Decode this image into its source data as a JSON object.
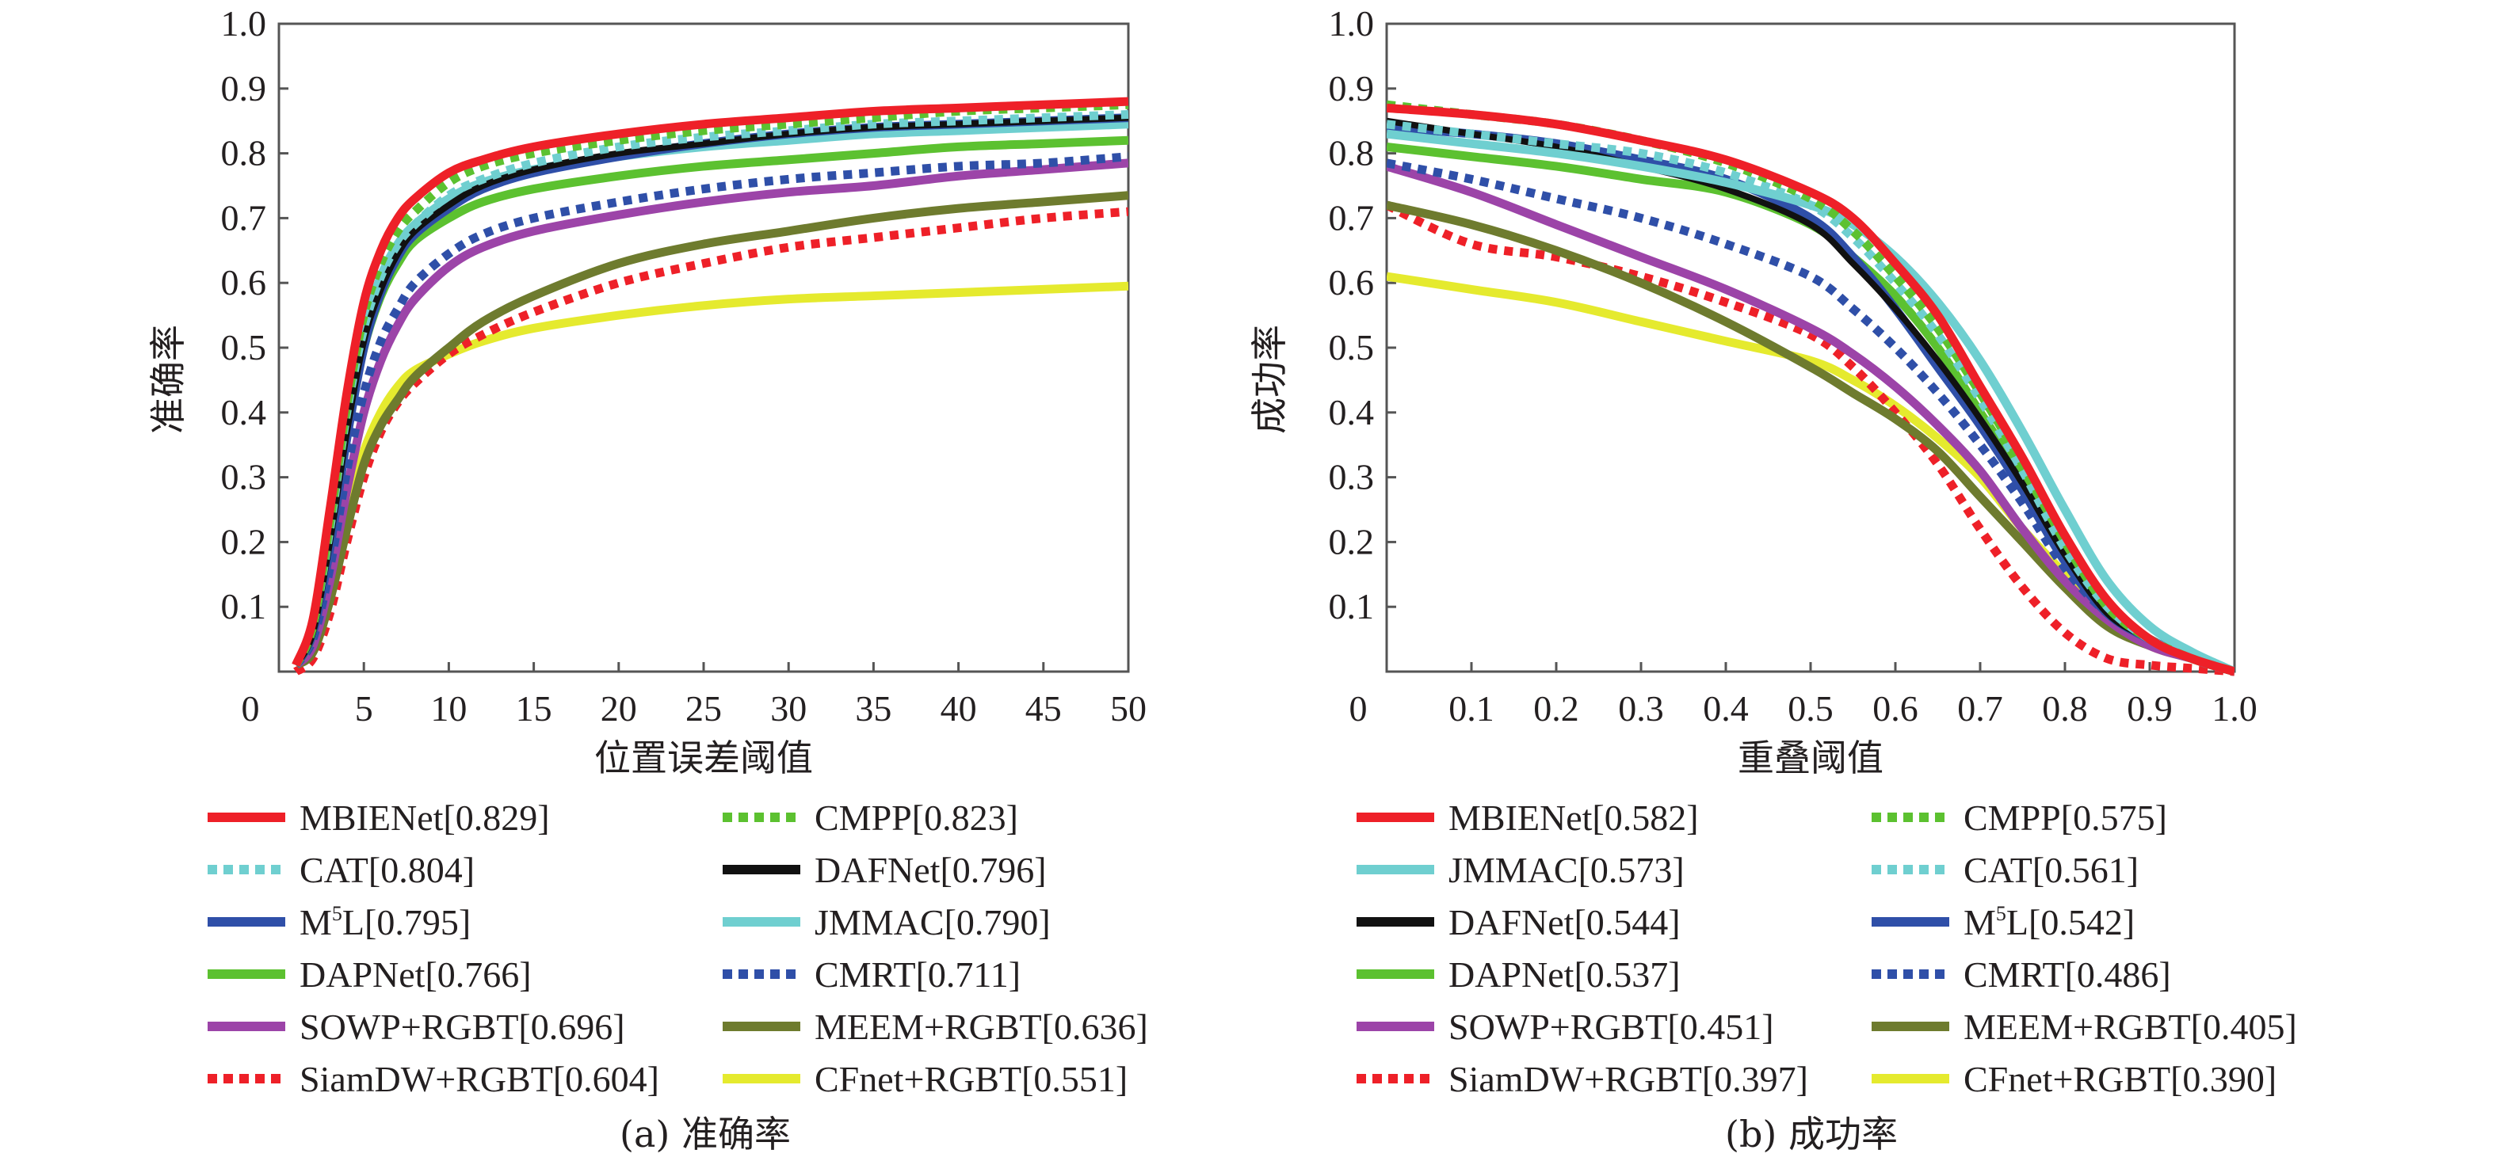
{
  "chart_data": [
    {
      "id": "precision",
      "type": "line",
      "title": "",
      "caption": "(a) 准确率",
      "xlabel": "位置误差阈值",
      "ylabel": "准确率",
      "xlim": [
        0,
        50
      ],
      "ylim": [
        0,
        1.0
      ],
      "xticks": [
        0,
        5,
        10,
        15,
        20,
        25,
        30,
        35,
        40,
        45,
        50
      ],
      "xtick_labels": [
        "0",
        "5",
        "10",
        "15",
        "20",
        "25",
        "30",
        "35",
        "40",
        "45",
        "50"
      ],
      "yticks": [
        0.1,
        0.2,
        0.3,
        0.4,
        0.5,
        0.6,
        0.7,
        0.8,
        0.9,
        1.0
      ],
      "ytick_labels": [
        "0.1",
        "0.2",
        "0.3",
        "0.4",
        "0.5",
        "0.6",
        "0.7",
        "0.8",
        "0.9",
        "1.0"
      ],
      "grid": false,
      "legend_position": "below",
      "x": [
        1,
        2,
        3,
        4,
        5,
        6,
        7,
        8,
        10,
        12,
        15,
        20,
        25,
        30,
        35,
        40,
        45,
        50
      ],
      "series": [
        {
          "name": "MBIENet",
          "score": "0.829",
          "color": "#ee2028",
          "style": "solid",
          "values": [
            0.01,
            0.08,
            0.25,
            0.43,
            0.57,
            0.65,
            0.7,
            0.73,
            0.77,
            0.79,
            0.81,
            0.83,
            0.845,
            0.855,
            0.865,
            0.87,
            0.875,
            0.88
          ]
        },
        {
          "name": "CMPP",
          "score": "0.823",
          "color": "#5cc130",
          "style": "dotted",
          "values": [
            0.01,
            0.07,
            0.23,
            0.41,
            0.55,
            0.63,
            0.68,
            0.71,
            0.755,
            0.78,
            0.8,
            0.82,
            0.835,
            0.845,
            0.855,
            0.865,
            0.87,
            0.875
          ]
        },
        {
          "name": "CAT",
          "score": "0.804",
          "color": "#6fcfd0",
          "style": "dotted",
          "values": [
            0.01,
            0.07,
            0.22,
            0.4,
            0.53,
            0.61,
            0.66,
            0.69,
            0.735,
            0.76,
            0.785,
            0.81,
            0.825,
            0.835,
            0.845,
            0.85,
            0.855,
            0.86
          ]
        },
        {
          "name": "DAFNet",
          "score": "0.796",
          "color": "#111111",
          "style": "solid",
          "values": [
            0.01,
            0.06,
            0.2,
            0.37,
            0.51,
            0.59,
            0.645,
            0.68,
            0.72,
            0.75,
            0.775,
            0.8,
            0.815,
            0.83,
            0.84,
            0.845,
            0.85,
            0.855
          ]
        },
        {
          "name": "M5L",
          "score": "0.795",
          "color": "#2f4fa8",
          "style": "solid",
          "values": [
            0.01,
            0.06,
            0.19,
            0.36,
            0.5,
            0.585,
            0.64,
            0.675,
            0.715,
            0.745,
            0.77,
            0.795,
            0.815,
            0.83,
            0.84,
            0.845,
            0.85,
            0.855
          ]
        },
        {
          "name": "JMMAC",
          "score": "0.790",
          "color": "#6fcfd0",
          "style": "solid",
          "values": [
            0.01,
            0.07,
            0.22,
            0.4,
            0.53,
            0.61,
            0.66,
            0.69,
            0.73,
            0.755,
            0.775,
            0.795,
            0.81,
            0.82,
            0.83,
            0.835,
            0.84,
            0.845
          ]
        },
        {
          "name": "DAPNet",
          "score": "0.766",
          "color": "#5cc130",
          "style": "solid",
          "values": [
            0.01,
            0.06,
            0.2,
            0.37,
            0.5,
            0.58,
            0.63,
            0.665,
            0.7,
            0.725,
            0.745,
            0.765,
            0.78,
            0.79,
            0.8,
            0.81,
            0.815,
            0.82
          ]
        },
        {
          "name": "CMRT",
          "score": "0.711",
          "color": "#2f4fa8",
          "style": "dotted",
          "values": [
            0.01,
            0.05,
            0.16,
            0.31,
            0.43,
            0.51,
            0.56,
            0.6,
            0.645,
            0.675,
            0.7,
            0.725,
            0.745,
            0.76,
            0.77,
            0.78,
            0.785,
            0.795
          ]
        },
        {
          "name": "SOWP+RGBT",
          "score": "0.696",
          "color": "#9c44a8",
          "style": "solid",
          "values": [
            0.01,
            0.04,
            0.14,
            0.28,
            0.4,
            0.48,
            0.535,
            0.575,
            0.625,
            0.655,
            0.68,
            0.705,
            0.725,
            0.74,
            0.75,
            0.765,
            0.775,
            0.785
          ]
        },
        {
          "name": "MEEM+RGBT",
          "score": "0.636",
          "color": "#6e7b2e",
          "style": "solid",
          "values": [
            0.01,
            0.03,
            0.11,
            0.22,
            0.32,
            0.38,
            0.42,
            0.455,
            0.5,
            0.54,
            0.58,
            0.63,
            0.66,
            0.68,
            0.7,
            0.715,
            0.725,
            0.735
          ]
        },
        {
          "name": "SiamDW+RGBT",
          "score": "0.604",
          "color": "#ee2028",
          "style": "dotted",
          "values": [
            0.0,
            0.02,
            0.09,
            0.2,
            0.3,
            0.37,
            0.415,
            0.445,
            0.49,
            0.52,
            0.555,
            0.6,
            0.63,
            0.655,
            0.67,
            0.685,
            0.7,
            0.71
          ]
        },
        {
          "name": "CFnet+RGBT",
          "score": "0.551",
          "color": "#e5ea2e",
          "style": "solid",
          "values": [
            0.01,
            0.04,
            0.14,
            0.25,
            0.34,
            0.4,
            0.44,
            0.465,
            0.49,
            0.51,
            0.53,
            0.55,
            0.565,
            0.575,
            0.58,
            0.585,
            0.59,
            0.595
          ]
        }
      ]
    },
    {
      "id": "success",
      "type": "line",
      "title": "",
      "caption": "(b) 成功率",
      "xlabel": "重叠阈值",
      "ylabel": "成功率",
      "xlim": [
        0,
        1.0
      ],
      "ylim": [
        0,
        1.0
      ],
      "xticks": [
        0,
        0.1,
        0.2,
        0.3,
        0.4,
        0.5,
        0.6,
        0.7,
        0.8,
        0.9,
        1.0
      ],
      "xtick_labels": [
        "0",
        "0.1",
        "0.2",
        "0.3",
        "0.4",
        "0.5",
        "0.6",
        "0.7",
        "0.8",
        "0.9",
        "1.0"
      ],
      "yticks": [
        0.1,
        0.2,
        0.3,
        0.4,
        0.5,
        0.6,
        0.7,
        0.8,
        0.9,
        1.0
      ],
      "ytick_labels": [
        "0.1",
        "0.2",
        "0.3",
        "0.4",
        "0.5",
        "0.6",
        "0.7",
        "0.8",
        "0.9",
        "1.0"
      ],
      "grid": false,
      "legend_position": "below",
      "x": [
        0,
        0.1,
        0.2,
        0.3,
        0.4,
        0.5,
        0.55,
        0.6,
        0.65,
        0.7,
        0.75,
        0.8,
        0.85,
        0.9,
        0.95,
        1.0
      ],
      "series": [
        {
          "name": "MBIENet",
          "score": "0.582",
          "color": "#ee2028",
          "style": "solid",
          "values": [
            0.87,
            0.86,
            0.845,
            0.82,
            0.79,
            0.74,
            0.7,
            0.63,
            0.55,
            0.44,
            0.33,
            0.21,
            0.11,
            0.05,
            0.02,
            0.0
          ]
        },
        {
          "name": "CMPP",
          "score": "0.575",
          "color": "#5cc130",
          "style": "dotted",
          "values": [
            0.875,
            0.86,
            0.845,
            0.82,
            0.785,
            0.73,
            0.68,
            0.61,
            0.53,
            0.43,
            0.32,
            0.2,
            0.1,
            0.05,
            0.02,
            0.0
          ]
        },
        {
          "name": "JMMAC",
          "score": "0.573",
          "color": "#6fcfd0",
          "style": "solid",
          "values": [
            0.83,
            0.815,
            0.8,
            0.78,
            0.755,
            0.72,
            0.69,
            0.64,
            0.57,
            0.48,
            0.37,
            0.25,
            0.14,
            0.07,
            0.03,
            0.0
          ]
        },
        {
          "name": "CAT",
          "score": "0.561",
          "color": "#6fcfd0",
          "style": "dotted",
          "values": [
            0.845,
            0.83,
            0.815,
            0.8,
            0.77,
            0.72,
            0.67,
            0.6,
            0.52,
            0.42,
            0.31,
            0.19,
            0.1,
            0.05,
            0.02,
            0.0
          ]
        },
        {
          "name": "DAFNet",
          "score": "0.544",
          "color": "#111111",
          "style": "solid",
          "values": [
            0.85,
            0.83,
            0.81,
            0.78,
            0.745,
            0.69,
            0.63,
            0.56,
            0.48,
            0.39,
            0.29,
            0.18,
            0.09,
            0.05,
            0.02,
            0.0
          ]
        },
        {
          "name": "M5L",
          "score": "0.542",
          "color": "#2f4fa8",
          "style": "solid",
          "values": [
            0.84,
            0.83,
            0.815,
            0.79,
            0.76,
            0.7,
            0.64,
            0.56,
            0.47,
            0.38,
            0.28,
            0.17,
            0.09,
            0.05,
            0.02,
            0.0
          ]
        },
        {
          "name": "DAPNet",
          "score": "0.537",
          "color": "#5cc130",
          "style": "solid",
          "values": [
            0.81,
            0.795,
            0.78,
            0.76,
            0.74,
            0.69,
            0.64,
            0.58,
            0.5,
            0.4,
            0.3,
            0.19,
            0.1,
            0.05,
            0.02,
            0.0
          ]
        },
        {
          "name": "CMRT",
          "score": "0.486",
          "color": "#2f4fa8",
          "style": "dotted",
          "values": [
            0.785,
            0.76,
            0.73,
            0.7,
            0.66,
            0.61,
            0.56,
            0.5,
            0.43,
            0.35,
            0.26,
            0.16,
            0.09,
            0.05,
            0.02,
            0.0
          ]
        },
        {
          "name": "SOWP+RGBT",
          "score": "0.451",
          "color": "#9c44a8",
          "style": "solid",
          "values": [
            0.78,
            0.74,
            0.69,
            0.64,
            0.59,
            0.53,
            0.49,
            0.44,
            0.38,
            0.31,
            0.22,
            0.14,
            0.08,
            0.04,
            0.02,
            0.0
          ]
        },
        {
          "name": "MEEM+RGBT",
          "score": "0.405",
          "color": "#6e7b2e",
          "style": "solid",
          "values": [
            0.72,
            0.69,
            0.65,
            0.6,
            0.54,
            0.47,
            0.43,
            0.39,
            0.34,
            0.27,
            0.2,
            0.13,
            0.07,
            0.04,
            0.02,
            0.0
          ]
        },
        {
          "name": "SiamDW+RGBT",
          "score": "0.397",
          "color": "#ee2028",
          "style": "dotted",
          "values": [
            0.72,
            0.66,
            0.64,
            0.61,
            0.57,
            0.52,
            0.47,
            0.4,
            0.32,
            0.22,
            0.13,
            0.06,
            0.02,
            0.01,
            0.005,
            0.0
          ]
        },
        {
          "name": "CFnet+RGBT",
          "score": "0.390",
          "color": "#e5ea2e",
          "style": "solid",
          "values": [
            0.61,
            0.59,
            0.57,
            0.54,
            0.51,
            0.48,
            0.45,
            0.41,
            0.36,
            0.3,
            0.22,
            0.15,
            0.08,
            0.04,
            0.02,
            0.0
          ]
        }
      ]
    }
  ]
}
